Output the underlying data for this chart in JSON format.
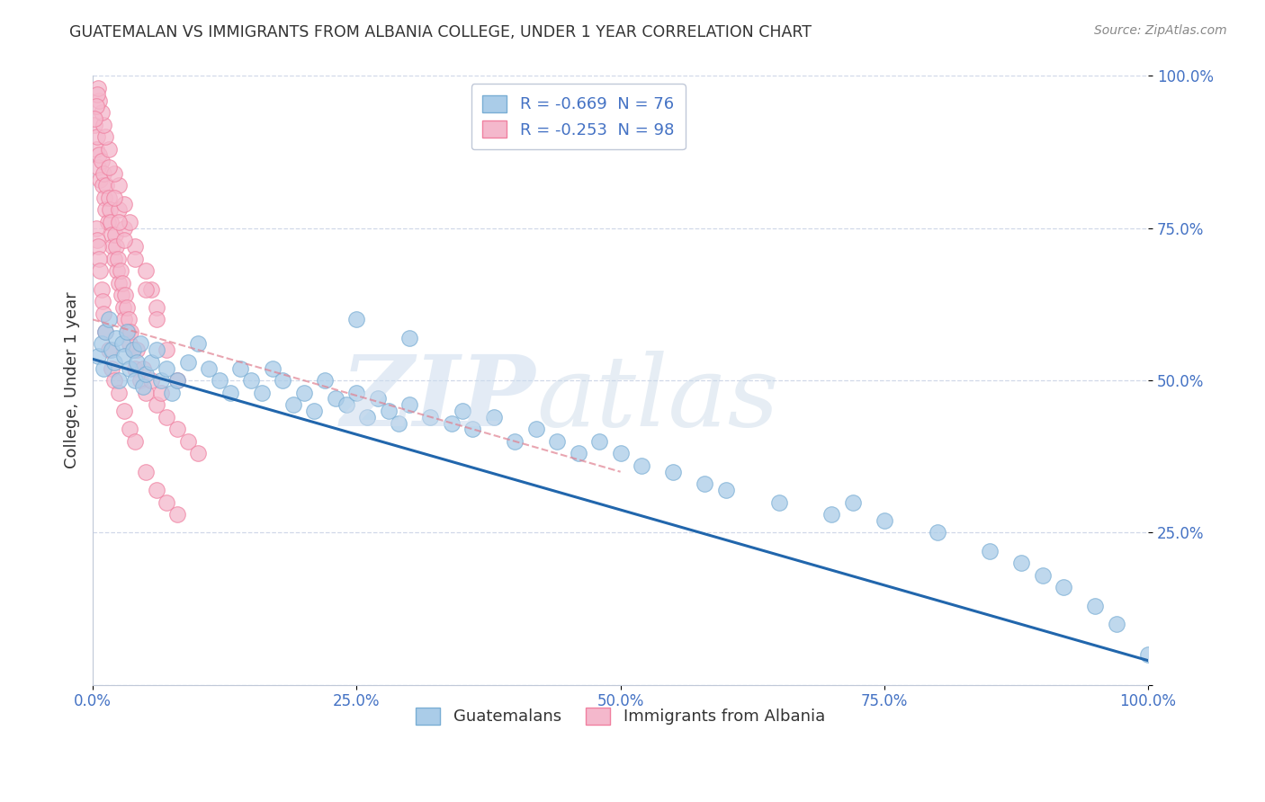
{
  "title": "GUATEMALAN VS IMMIGRANTS FROM ALBANIA COLLEGE, UNDER 1 YEAR CORRELATION CHART",
  "source": "Source: ZipAtlas.com",
  "ylabel": "College, Under 1 year",
  "xlim": [
    0.0,
    1.0
  ],
  "ylim": [
    0.0,
    1.0
  ],
  "xticks": [
    0.0,
    0.25,
    0.5,
    0.75,
    1.0
  ],
  "yticks": [
    0.0,
    0.25,
    0.5,
    0.75,
    1.0
  ],
  "xticklabels": [
    "0.0%",
    "25.0%",
    "50.0%",
    "75.0%",
    "100.0%"
  ],
  "yticklabels_right": [
    "",
    "25.0%",
    "50.0%",
    "75.0%",
    "100.0%"
  ],
  "legend_label_blue": "R = -0.669  N = 76",
  "legend_label_pink": "R = -0.253  N = 98",
  "blue_scatter_color": "#aacce8",
  "pink_scatter_color": "#f4b8cc",
  "blue_edge_color": "#7aaed4",
  "pink_edge_color": "#f080a0",
  "blue_line_color": "#2166ac",
  "pink_line_color": "#e08090",
  "text_color": "#4472c4",
  "title_color": "#333333",
  "source_color": "#888888",
  "grid_color": "#d0d8e8",
  "blue_line_x": [
    0.0,
    1.0
  ],
  "blue_line_y": [
    0.535,
    0.04
  ],
  "pink_line_x": [
    0.0,
    0.5
  ],
  "pink_line_y": [
    0.6,
    0.35
  ],
  "blue_scatter_x": [
    0.005,
    0.008,
    0.01,
    0.012,
    0.015,
    0.018,
    0.02,
    0.022,
    0.025,
    0.028,
    0.03,
    0.032,
    0.035,
    0.038,
    0.04,
    0.042,
    0.045,
    0.048,
    0.05,
    0.055,
    0.06,
    0.065,
    0.07,
    0.075,
    0.08,
    0.09,
    0.1,
    0.11,
    0.12,
    0.13,
    0.14,
    0.15,
    0.16,
    0.17,
    0.18,
    0.19,
    0.2,
    0.21,
    0.22,
    0.23,
    0.24,
    0.25,
    0.26,
    0.27,
    0.28,
    0.29,
    0.3,
    0.32,
    0.34,
    0.35,
    0.36,
    0.38,
    0.4,
    0.42,
    0.44,
    0.46,
    0.48,
    0.5,
    0.52,
    0.55,
    0.58,
    0.6,
    0.65,
    0.7,
    0.72,
    0.75,
    0.8,
    0.85,
    0.88,
    0.9,
    0.92,
    0.95,
    0.97,
    1.0,
    0.25,
    0.3
  ],
  "blue_scatter_y": [
    0.54,
    0.56,
    0.52,
    0.58,
    0.6,
    0.55,
    0.53,
    0.57,
    0.5,
    0.56,
    0.54,
    0.58,
    0.52,
    0.55,
    0.5,
    0.53,
    0.56,
    0.49,
    0.51,
    0.53,
    0.55,
    0.5,
    0.52,
    0.48,
    0.5,
    0.53,
    0.56,
    0.52,
    0.5,
    0.48,
    0.52,
    0.5,
    0.48,
    0.52,
    0.5,
    0.46,
    0.48,
    0.45,
    0.5,
    0.47,
    0.46,
    0.48,
    0.44,
    0.47,
    0.45,
    0.43,
    0.46,
    0.44,
    0.43,
    0.45,
    0.42,
    0.44,
    0.4,
    0.42,
    0.4,
    0.38,
    0.4,
    0.38,
    0.36,
    0.35,
    0.33,
    0.32,
    0.3,
    0.28,
    0.3,
    0.27,
    0.25,
    0.22,
    0.2,
    0.18,
    0.16,
    0.13,
    0.1,
    0.05,
    0.6,
    0.57
  ],
  "pink_scatter_x": [
    0.002,
    0.003,
    0.004,
    0.005,
    0.006,
    0.007,
    0.008,
    0.009,
    0.01,
    0.011,
    0.012,
    0.013,
    0.014,
    0.015,
    0.016,
    0.017,
    0.018,
    0.019,
    0.02,
    0.021,
    0.022,
    0.023,
    0.024,
    0.025,
    0.026,
    0.027,
    0.028,
    0.029,
    0.03,
    0.031,
    0.032,
    0.033,
    0.034,
    0.035,
    0.036,
    0.038,
    0.04,
    0.042,
    0.045,
    0.048,
    0.05,
    0.055,
    0.06,
    0.065,
    0.07,
    0.08,
    0.09,
    0.1,
    0.003,
    0.004,
    0.005,
    0.006,
    0.007,
    0.008,
    0.009,
    0.01,
    0.012,
    0.015,
    0.018,
    0.02,
    0.025,
    0.03,
    0.035,
    0.04,
    0.05,
    0.06,
    0.07,
    0.08,
    0.025,
    0.03,
    0.04,
    0.05,
    0.055,
    0.06,
    0.025,
    0.03,
    0.02,
    0.035,
    0.015,
    0.012,
    0.01,
    0.008,
    0.006,
    0.005,
    0.004,
    0.003,
    0.002,
    0.015,
    0.02,
    0.025,
    0.03,
    0.04,
    0.05,
    0.06,
    0.07,
    0.08
  ],
  "pink_scatter_y": [
    0.92,
    0.88,
    0.9,
    0.85,
    0.87,
    0.83,
    0.86,
    0.82,
    0.84,
    0.8,
    0.78,
    0.82,
    0.76,
    0.8,
    0.78,
    0.76,
    0.74,
    0.72,
    0.7,
    0.74,
    0.72,
    0.68,
    0.7,
    0.66,
    0.68,
    0.64,
    0.66,
    0.62,
    0.6,
    0.64,
    0.62,
    0.58,
    0.6,
    0.56,
    0.58,
    0.55,
    0.52,
    0.55,
    0.5,
    0.52,
    0.48,
    0.5,
    0.46,
    0.48,
    0.44,
    0.42,
    0.4,
    0.38,
    0.75,
    0.73,
    0.72,
    0.7,
    0.68,
    0.65,
    0.63,
    0.61,
    0.58,
    0.55,
    0.52,
    0.5,
    0.48,
    0.45,
    0.42,
    0.4,
    0.35,
    0.32,
    0.3,
    0.28,
    0.78,
    0.75,
    0.72,
    0.68,
    0.65,
    0.62,
    0.82,
    0.79,
    0.84,
    0.76,
    0.88,
    0.9,
    0.92,
    0.94,
    0.96,
    0.98,
    0.97,
    0.95,
    0.93,
    0.85,
    0.8,
    0.76,
    0.73,
    0.7,
    0.65,
    0.6,
    0.55,
    0.5
  ]
}
